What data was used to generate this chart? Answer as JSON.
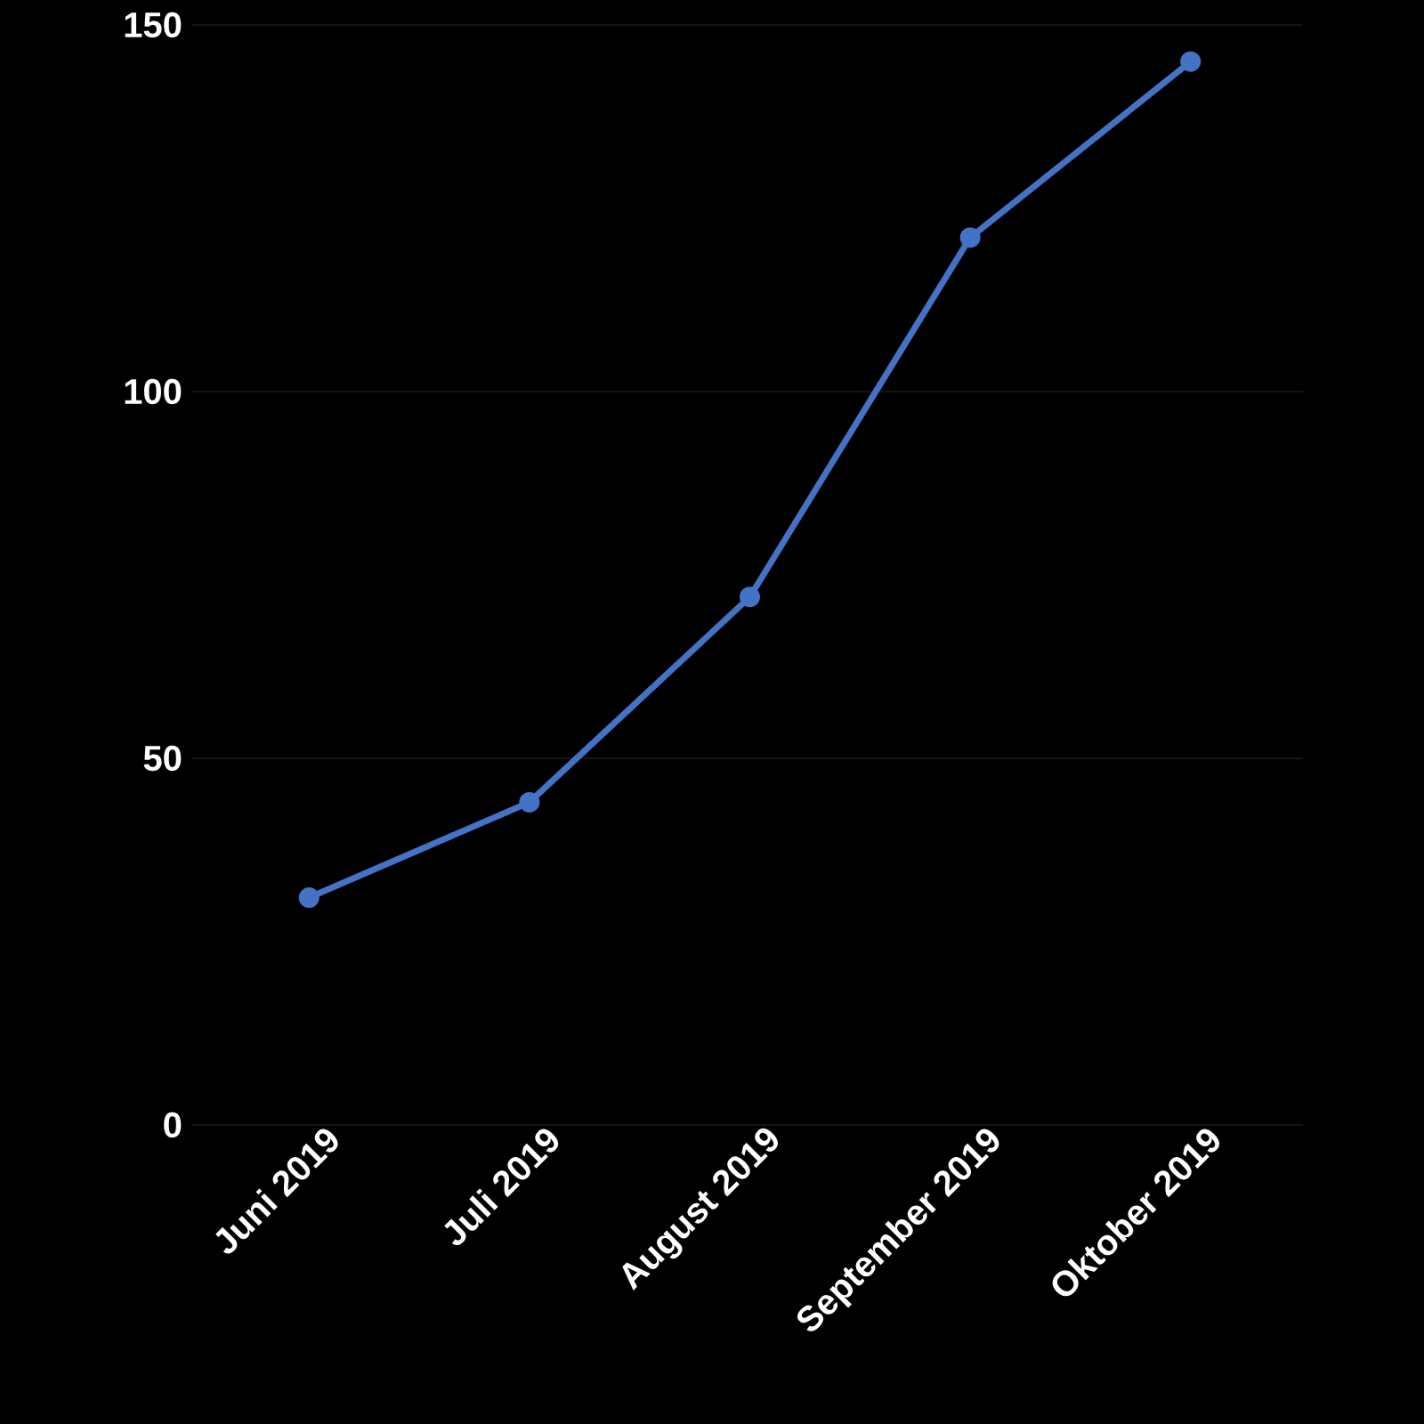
{
  "chart_data": {
    "type": "line",
    "categories": [
      "Juni 2019",
      "Juli 2019",
      "August 2019",
      "September 2019",
      "Oktober 2019"
    ],
    "series": [
      {
        "color": "#4472c4",
        "values": [
          31,
          44,
          72,
          121,
          145
        ]
      }
    ],
    "ylim": [
      0,
      150
    ],
    "yticks": [
      0,
      50,
      100,
      150
    ],
    "grid": "y",
    "marker": "circle",
    "line_style": "solid"
  }
}
